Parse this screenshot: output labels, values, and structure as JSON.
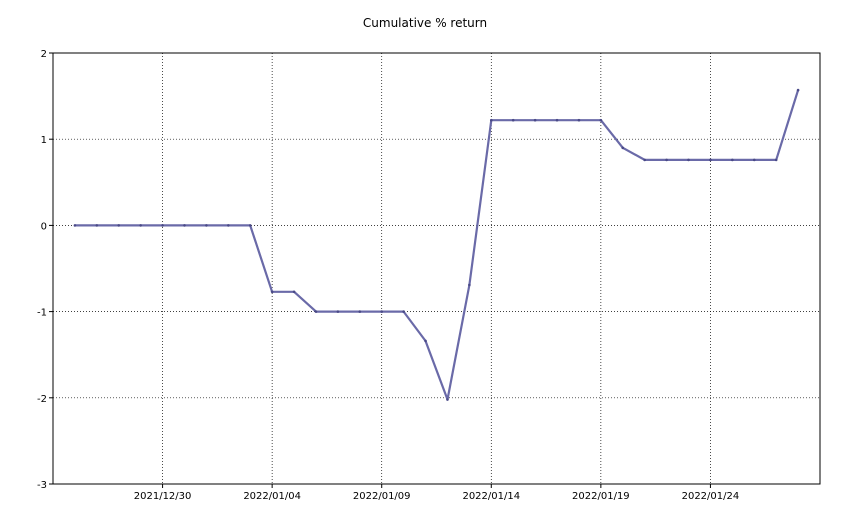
{
  "chart_data": {
    "type": "line",
    "title": "Cumulative % return",
    "xlabel": "",
    "ylabel": "",
    "ylim": [
      -3,
      2
    ],
    "yticks": [
      -3,
      -2,
      -1,
      0,
      1,
      2
    ],
    "xlim": [
      "2021-12-25",
      "2022-01-29"
    ],
    "xticks": [
      "2021/12/30",
      "2022/01/04",
      "2022/01/09",
      "2022/01/14",
      "2022/01/19",
      "2022/01/24"
    ],
    "grid": true,
    "series": [
      {
        "color": "#6a6aa8",
        "x": [
          "2021-12-26",
          "2021-12-27",
          "2021-12-28",
          "2021-12-29",
          "2021-12-30",
          "2021-12-31",
          "2022-01-01",
          "2022-01-02",
          "2022-01-03",
          "2022-01-04",
          "2022-01-05",
          "2022-01-06",
          "2022-01-07",
          "2022-01-08",
          "2022-01-09",
          "2022-01-10",
          "2022-01-11",
          "2022-01-12",
          "2022-01-13",
          "2022-01-14",
          "2022-01-15",
          "2022-01-16",
          "2022-01-17",
          "2022-01-18",
          "2022-01-19",
          "2022-01-20",
          "2022-01-21",
          "2022-01-22",
          "2022-01-23",
          "2022-01-24",
          "2022-01-25",
          "2022-01-26",
          "2022-01-27",
          "2022-01-28"
        ],
        "values": [
          0,
          0,
          0,
          0,
          0,
          0,
          0,
          0,
          0,
          -0.77,
          -0.77,
          -1.0,
          -1.0,
          -1.0,
          -1.0,
          -1.0,
          -1.34,
          -2.02,
          -0.69,
          1.22,
          1.22,
          1.22,
          1.22,
          1.22,
          1.22,
          0.9,
          0.76,
          0.76,
          0.76,
          0.76,
          0.76,
          0.76,
          0.76,
          1.57
        ]
      }
    ]
  }
}
